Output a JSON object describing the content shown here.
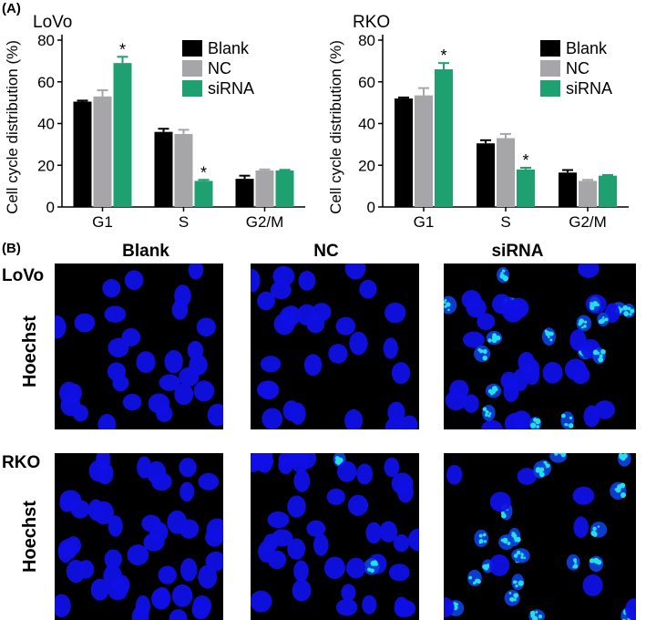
{
  "panel_a_label": "(A)",
  "panel_b_label": "(B)",
  "colors": {
    "Blank": "#000000",
    "NC": "#a6a6a8",
    "siRNA": "#1fa071",
    "nuclei": "#1010e6",
    "apoptotic": "#22e0e8"
  },
  "chart_data": [
    {
      "type": "bar",
      "title": "LoVo",
      "ylabel": "Cell cycle distribution (%)",
      "xlabel": "",
      "categories": [
        "G1",
        "S",
        "G2/M"
      ],
      "ylim": [
        0,
        80
      ],
      "yticks": [
        0,
        20,
        40,
        60,
        80
      ],
      "legend_position": "top-right",
      "series": [
        {
          "name": "Blank",
          "values": [
            50.5,
            36,
            13.5
          ],
          "errors": [
            0.5,
            1.5,
            1.5
          ]
        },
        {
          "name": "NC",
          "values": [
            53,
            35,
            17.5
          ],
          "errors": [
            3,
            2,
            0.5
          ]
        },
        {
          "name": "siRNA",
          "values": [
            69,
            12.5,
            17.5
          ],
          "errors": [
            3,
            0.5,
            0.3
          ]
        }
      ],
      "significance": [
        {
          "series": "siRNA",
          "category": "G1",
          "mark": "*"
        },
        {
          "series": "siRNA",
          "category": "S",
          "mark": "*"
        }
      ]
    },
    {
      "type": "bar",
      "title": "RKO",
      "ylabel": "Cell cycle distribution (%)",
      "xlabel": "",
      "categories": [
        "G1",
        "S",
        "G2/M"
      ],
      "ylim": [
        0,
        80
      ],
      "yticks": [
        0,
        20,
        40,
        60,
        80
      ],
      "legend_position": "top-right",
      "series": [
        {
          "name": "Blank",
          "values": [
            52,
            30.5,
            16.5
          ],
          "errors": [
            0.5,
            1.5,
            1.2
          ]
        },
        {
          "name": "NC",
          "values": [
            53.5,
            33,
            12.5
          ],
          "errors": [
            3.5,
            2,
            0.5
          ]
        },
        {
          "name": "siRNA",
          "values": [
            66,
            18,
            15
          ],
          "errors": [
            3,
            0.8,
            0.3
          ]
        }
      ],
      "significance": [
        {
          "series": "siRNA",
          "category": "G1",
          "mark": "*"
        },
        {
          "series": "siRNA",
          "category": "S",
          "mark": "*"
        }
      ]
    }
  ],
  "microscopy": {
    "columns": [
      "Blank",
      "NC",
      "siRNA"
    ],
    "rows": [
      {
        "name": "LoVo",
        "stain": "Hoechst"
      },
      {
        "name": "RKO",
        "stain": "Hoechst"
      }
    ]
  }
}
